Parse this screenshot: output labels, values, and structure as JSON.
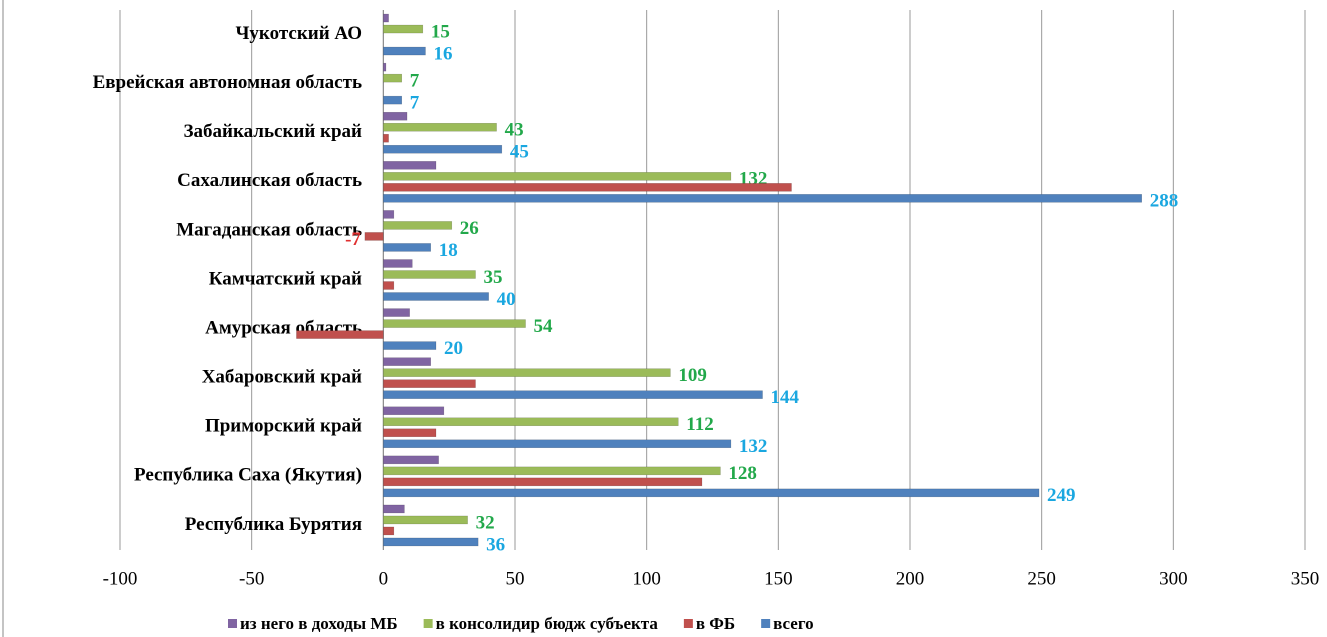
{
  "chart_data": {
    "type": "hbar",
    "categories": [
      "Республика Бурятия",
      "Республика Саха (Якутия)",
      "Приморский край",
      "Хабаровский край",
      "Амурская область",
      "Камчатский край",
      "Магаданская область",
      "Сахалинская область",
      "Забайкальский край",
      "Еврейская автономная область",
      "Чукотский АО"
    ],
    "series": [
      {
        "name": "из него в доходы МБ",
        "color": "#8064a2",
        "values": [
          8,
          21,
          23,
          18,
          10,
          11,
          4,
          20,
          9,
          1,
          2
        ]
      },
      {
        "name": "в консолидир бюдж субъекта",
        "color": "#9bbb59",
        "label_color": "#22a84a",
        "values": [
          32,
          128,
          112,
          109,
          54,
          35,
          26,
          132,
          43,
          7,
          15
        ]
      },
      {
        "name": "в ФБ",
        "color": "#c0504d",
        "label_color": "#e03030",
        "values": [
          4,
          121,
          20,
          35,
          -33,
          4,
          -7,
          155,
          2,
          0,
          0
        ],
        "value_labels": [
          null,
          null,
          null,
          null,
          null,
          null,
          "-7",
          null,
          null,
          null,
          null
        ]
      },
      {
        "name": "всего",
        "color": "#4f81bd",
        "label_color": "#1aa7e0",
        "values": [
          36,
          249,
          132,
          144,
          20,
          40,
          18,
          288,
          45,
          7,
          16
        ]
      }
    ],
    "xlim": [
      -100,
      350
    ],
    "xticks": [
      -100,
      -50,
      0,
      50,
      100,
      150,
      200,
      250,
      300,
      350
    ],
    "grid": true
  }
}
